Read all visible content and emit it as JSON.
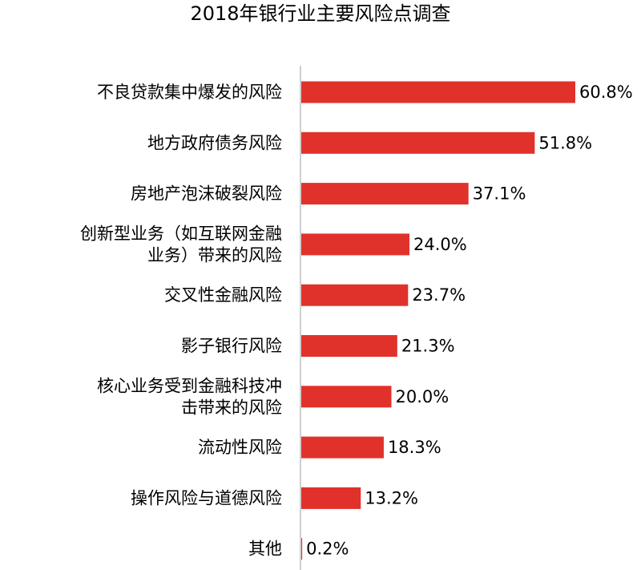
{
  "chart_data": {
    "type": "bar",
    "orientation": "horizontal",
    "title": "2018年银行业主要风险点调查",
    "xlabel": "",
    "ylabel": "",
    "xlim": [
      0,
      60.8
    ],
    "grid": false,
    "value_format": "percent-1dp",
    "bar_color": "#e0322b",
    "axis_color": "#bfbfbf",
    "categories": [
      [
        "不良贷款集中爆发的风险"
      ],
      [
        "地方政府债务风险"
      ],
      [
        "房地产泡沫破裂风险"
      ],
      [
        "创新型业务（如互联网金融",
        "业务）带来的风险"
      ],
      [
        "交叉性金融风险"
      ],
      [
        "影子银行风险"
      ],
      [
        "核心业务受到金融科技冲",
        "击带来的风险"
      ],
      [
        "流动性风险"
      ],
      [
        "操作风险与道德风险"
      ],
      [
        "其他"
      ]
    ],
    "values": [
      60.8,
      51.8,
      37.1,
      24.0,
      23.7,
      21.3,
      20.0,
      18.3,
      13.2,
      0.2
    ],
    "data_labels": [
      "60.8%",
      "51.8%",
      "37.1%",
      "24.0%",
      "23.7%",
      "21.3%",
      "20.0%",
      "18.3%",
      "13.2%",
      "0.2%"
    ]
  }
}
